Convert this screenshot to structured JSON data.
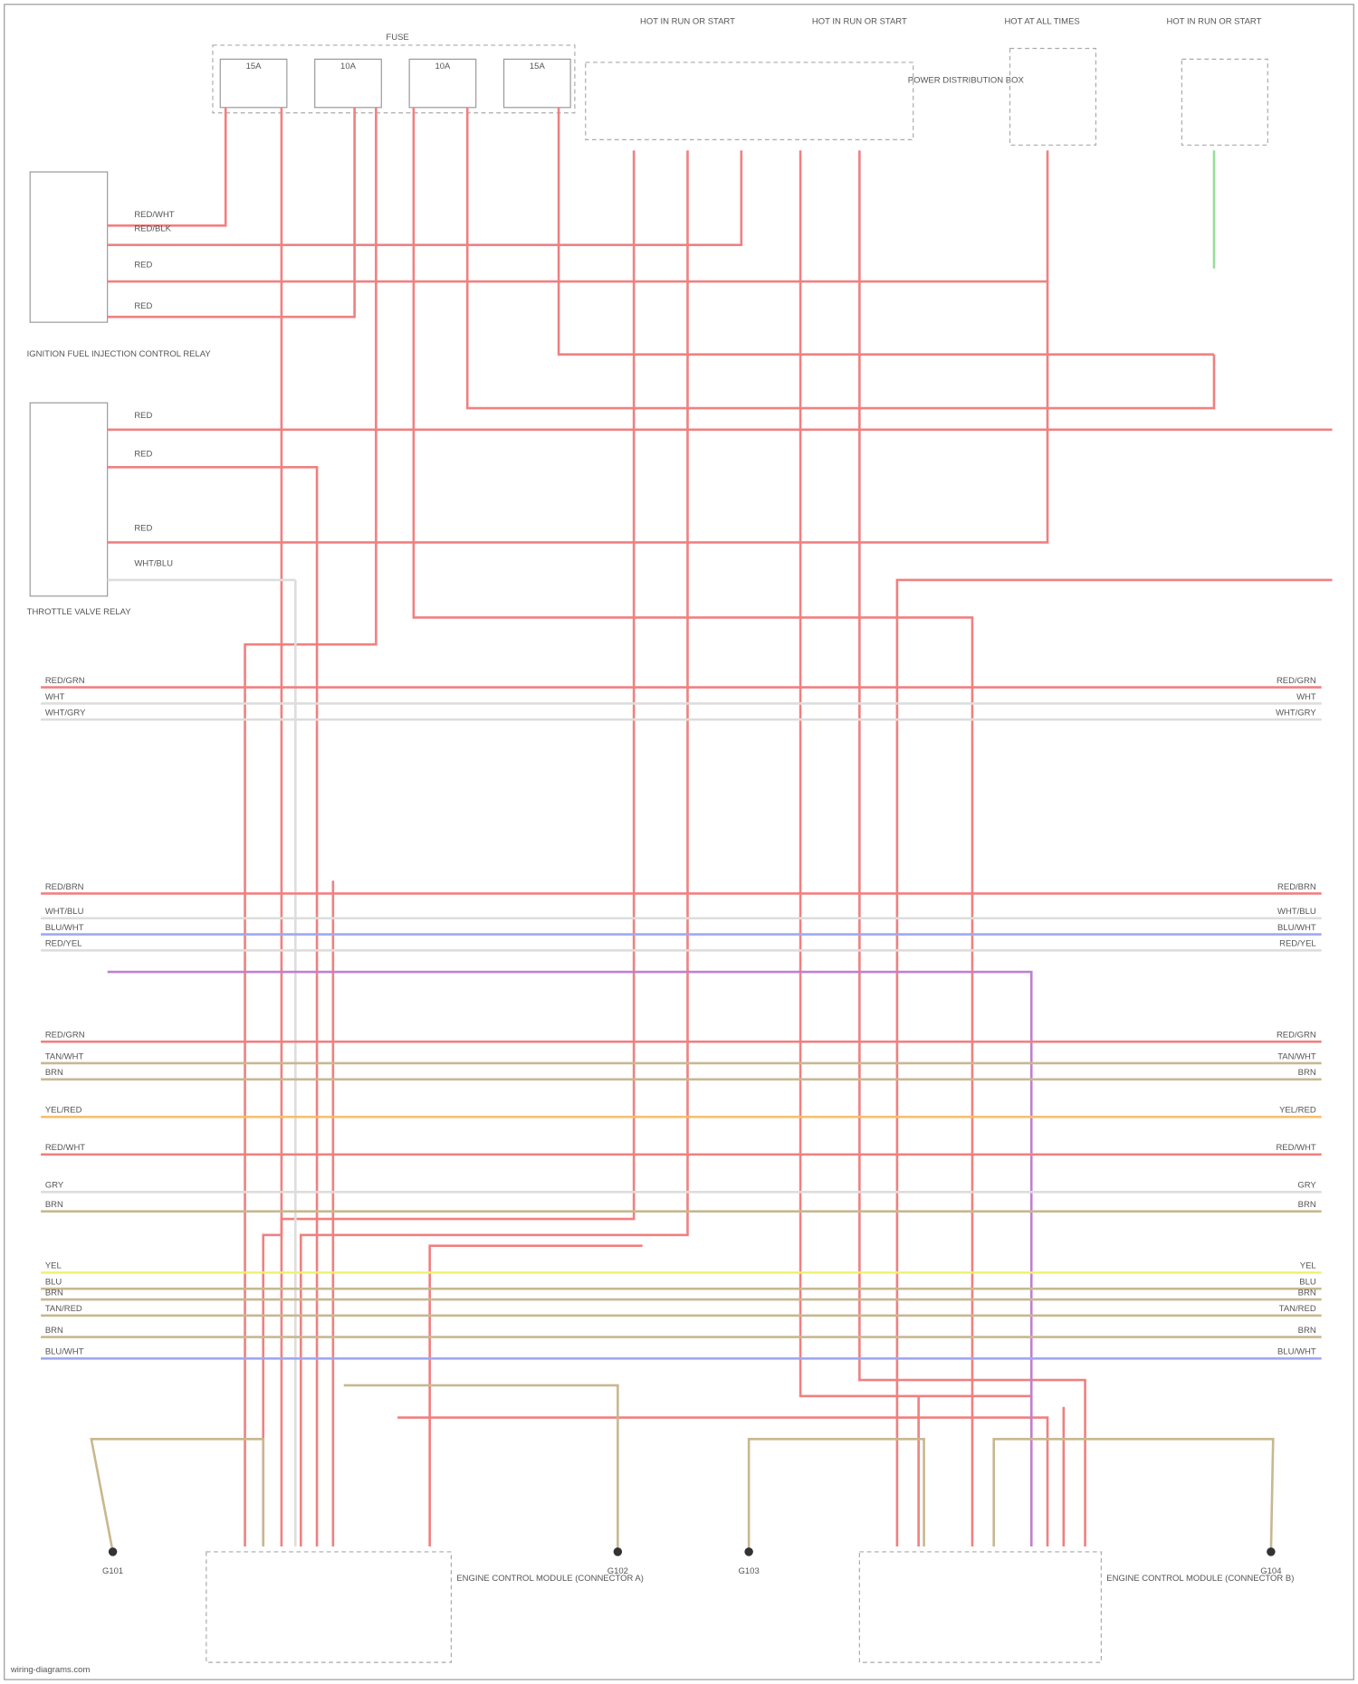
{
  "fuse_block": {
    "title": "FUSE",
    "fuses": [
      "15A",
      "10A",
      "10A",
      "15A"
    ]
  },
  "top_labels": [
    "HOT IN RUN OR START",
    "HOT IN RUN OR START",
    "HOT AT ALL TIMES",
    "HOT IN RUN OR START"
  ],
  "pdb": "POWER DISTRIBUTION BOX",
  "components": [
    "IGNITION FUEL INJECTION CONTROL RELAY",
    "THROTTLE VALVE RELAY",
    "ENGINE CONTROL MODULE (CONNECTOR A)",
    "ENGINE CONTROL MODULE (CONNECTOR B)"
  ],
  "left_wires": [
    "RED/WHT",
    "RED/BLK",
    "RED",
    "RED",
    "RED",
    "RED",
    "RED",
    "WHT/BLU"
  ],
  "buses": [
    {
      "left": "RED/GRN",
      "right": "RED/GRN"
    },
    {
      "left": "WHT",
      "right": "WHT"
    },
    {
      "left": "WHT/GRY",
      "right": "WHT/GRY"
    },
    {
      "left": "RED/BRN",
      "right": "RED/BRN"
    },
    {
      "left": "WHT/BLU",
      "right": "WHT/BLU"
    },
    {
      "left": "BLU/WHT",
      "right": "BLU/WHT"
    },
    {
      "left": "RED/YEL",
      "right": "RED/YEL"
    },
    {
      "left": "RED/GRN",
      "right": "RED/GRN"
    },
    {
      "left": "TAN/WHT",
      "right": "TAN/WHT"
    },
    {
      "left": "BRN",
      "right": "BRN"
    },
    {
      "left": "YEL/RED",
      "right": "YEL/RED"
    },
    {
      "left": "RED/WHT",
      "right": "RED/WHT"
    },
    {
      "left": "GRY",
      "right": "GRY"
    },
    {
      "left": "BRN",
      "right": "BRN"
    },
    {
      "left": "YEL",
      "right": "YEL"
    },
    {
      "left": "BLU",
      "right": "BLU"
    },
    {
      "left": "BRN",
      "right": "BRN"
    },
    {
      "left": "TAN/RED",
      "right": "TAN/RED"
    },
    {
      "left": "BRN",
      "right": "BRN"
    },
    {
      "left": "BLU/WHT",
      "right": "BLU/WHT"
    }
  ],
  "grounds": [
    "G101",
    "G102",
    "G103",
    "G104"
  ],
  "footer": "wiring-diagrams.com"
}
